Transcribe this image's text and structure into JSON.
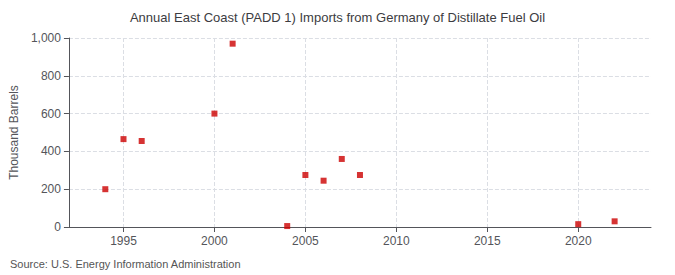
{
  "chart_data": {
    "type": "scatter",
    "title": "Annual East Coast (PADD 1) Imports from Germany of Distillate Fuel Oil",
    "ylabel": "Thousand Barrels",
    "annotation": "Source: U.S. Energy Information Administration",
    "x": [
      1994,
      1995,
      1996,
      2000,
      2001,
      2004,
      2005,
      2006,
      2007,
      2008,
      2020,
      2022
    ],
    "values": [
      200,
      465,
      455,
      600,
      970,
      5,
      275,
      245,
      360,
      275,
      15,
      30
    ],
    "color": "#cc0000",
    "marker": "square",
    "xlim": [
      1992,
      2024
    ],
    "xticks": [
      1995,
      2000,
      2005,
      2010,
      2015,
      2020
    ],
    "ylim": [
      0,
      1000
    ],
    "yticks": [
      0,
      200,
      400,
      600,
      800,
      {
        "value": 1000,
        "label": "1,000"
      }
    ],
    "grid": true
  }
}
